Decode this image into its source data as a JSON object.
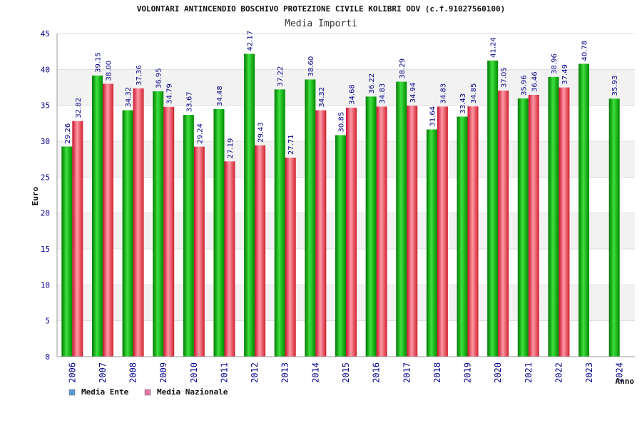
{
  "chart_data": {
    "type": "bar",
    "title": "VOLONTARI ANTINCENDIO BOSCHIVO PROTEZIONE CIVILE KOLIBRI ODV (c.f.91027560100)",
    "subtitle": "Media Importi",
    "xlabel": "Anno",
    "ylabel": "Euro",
    "ylim": [
      0,
      45
    ],
    "yticks": [
      0,
      5,
      10,
      15,
      20,
      25,
      30,
      35,
      40,
      45
    ],
    "grid": true,
    "legend_position": "bottom-left",
    "categories": [
      "2006",
      "2007",
      "2008",
      "2009",
      "2010",
      "2011",
      "2012",
      "2013",
      "2014",
      "2015",
      "2016",
      "2017",
      "2018",
      "2019",
      "2020",
      "2021",
      "2022",
      "2023",
      "2024"
    ],
    "series": [
      {
        "name": "Media Ente",
        "legend_color": "#5b9bd5",
        "bar_color": "#00a000",
        "values": [
          29.26,
          39.15,
          34.32,
          36.95,
          33.67,
          34.48,
          42.17,
          37.22,
          38.6,
          30.85,
          36.22,
          38.29,
          31.64,
          33.43,
          41.24,
          35.96,
          38.96,
          40.78,
          35.93
        ],
        "labels": [
          "29.26",
          "39.15",
          "34.32",
          "36.95",
          "33.67",
          "34.48",
          "42.17",
          "37.22",
          "38.60",
          "30.85",
          "36.22",
          "38.29",
          "31.64",
          "33.43",
          "41.24",
          "35.96",
          "38.96",
          "40.78",
          "35.93"
        ]
      },
      {
        "name": "Media Nazionale",
        "legend_color": "#e377a5",
        "bar_color": "#e0303a",
        "values": [
          32.82,
          38.0,
          37.36,
          34.79,
          29.24,
          27.19,
          29.43,
          27.71,
          34.32,
          34.68,
          34.83,
          34.94,
          34.83,
          34.85,
          37.05,
          36.46,
          37.49,
          null,
          null
        ],
        "labels": [
          "32.82",
          "38.00",
          "37.36",
          "34.79",
          "29.24",
          "27.19",
          "29.43",
          "27.71",
          "34.32",
          "34.68",
          "34.83",
          "34.94",
          "34.83",
          "34.85",
          "37.05",
          "36.46",
          "37.49",
          "",
          ""
        ]
      }
    ]
  }
}
